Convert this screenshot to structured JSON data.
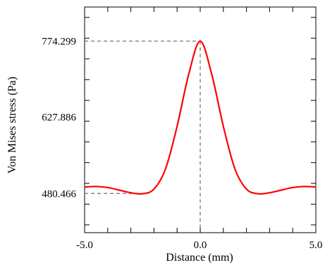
{
  "chart_data": {
    "type": "line",
    "xlabel": "Distance (mm)",
    "ylabel": "Von Mises stress (Pa)",
    "xlim": [
      -5.0,
      5.0
    ],
    "ylim": [
      405,
      840
    ],
    "x_tick_labels": [
      "-5.0",
      "0.0",
      "5.0"
    ],
    "x_tick_values": [
      -5.0,
      0.0,
      5.0
    ],
    "y_tick_labels": [
      "774.299",
      "627.886",
      "480.466"
    ],
    "y_tick_values": [
      774.299,
      627.886,
      480.466
    ],
    "grid": false,
    "line_color": "#ff0000",
    "reference_line_color": "#888888",
    "series": [
      {
        "x": [
          -5.0,
          -4.5,
          -4.0,
          -3.5,
          -3.0,
          -2.5,
          -2.0,
          -1.5,
          -1.0,
          -0.5,
          0.0,
          0.5,
          1.0,
          1.5,
          2.0,
          2.5,
          3.0,
          3.5,
          4.0,
          4.5,
          5.0
        ],
        "values": [
          493,
          494,
          492,
          487,
          482,
          480,
          489,
          528,
          610,
          710,
          774.299,
          710,
          610,
          528,
          489,
          480,
          482,
          487,
          492,
          494,
          493
        ]
      }
    ],
    "reference_lines": [
      {
        "x": 0.0,
        "y": 774.299
      },
      {
        "x": -2.5,
        "y": 480.466
      }
    ]
  }
}
